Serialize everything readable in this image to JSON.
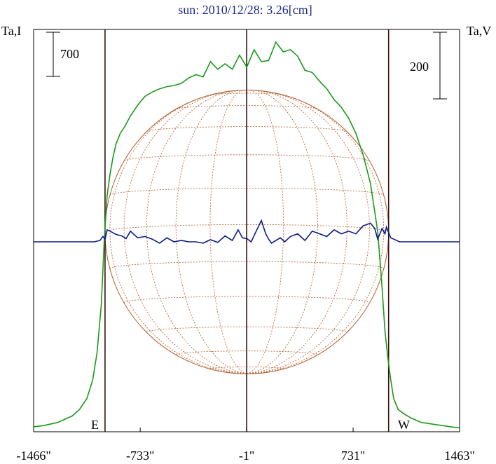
{
  "chart_data": {
    "type": "line",
    "title": "sun: 2010/12/28: 3.26[cm]",
    "left_axis_label": "Ta,I",
    "right_axis_label": "Ta,V",
    "scale_bar_left": "700",
    "scale_bar_right": "200",
    "x_tick_labels": [
      "-1466\"",
      "-733\"",
      "-1\"",
      "731\"",
      "1463\""
    ],
    "x_ticks": [
      -1466,
      -733,
      -1,
      731,
      1463
    ],
    "xlim": [
      -1466,
      1463
    ],
    "limb_east_label": "E",
    "limb_west_label": "W",
    "limb_positions": [
      -975,
      975
    ],
    "center_position": -1,
    "colors": {
      "stokes_I": "#1a9a1a",
      "stokes_V": "#0a1a8a",
      "grid": "#b25a28",
      "frame": "#000000",
      "limb_lines": "#3a1010",
      "title": "#1c2a8a"
    },
    "series": [
      {
        "key": "I",
        "x": [
          -1466,
          -1400,
          -1300,
          -1200,
          -1150,
          -1100,
          -1060,
          -1030,
          -1000,
          -980,
          -960,
          -940,
          -920,
          -900,
          -870,
          -840,
          -800,
          -750,
          -700,
          -650,
          -600,
          -550,
          -500,
          -450,
          -400,
          -350,
          -300,
          -250,
          -200,
          -150,
          -100,
          -50,
          0,
          50,
          100,
          150,
          200,
          250,
          300,
          350,
          400,
          450,
          500,
          550,
          600,
          650,
          700,
          750,
          800,
          850,
          900,
          930,
          950,
          970,
          990,
          1010,
          1040,
          1080,
          1130,
          1200,
          1300,
          1400,
          1463
        ],
        "y": [
          20,
          30,
          60,
          120,
          180,
          280,
          450,
          700,
          1150,
          1750,
          2150,
          2350,
          2500,
          2620,
          2720,
          2780,
          2880,
          2980,
          3060,
          3100,
          3130,
          3150,
          3160,
          3180,
          3230,
          3260,
          3240,
          3380,
          3310,
          3360,
          3310,
          3440,
          3330,
          3490,
          3380,
          3390,
          3560,
          3470,
          3490,
          3430,
          3300,
          3280,
          3200,
          3130,
          3030,
          2960,
          2860,
          2720,
          2520,
          2260,
          1820,
          1300,
          900,
          650,
          450,
          280,
          180,
          140,
          100,
          60,
          40,
          20,
          10
        ]
      },
      {
        "key": "V",
        "x": [
          -1466,
          -1200,
          -1050,
          -1010,
          -990,
          -975,
          -960,
          -940,
          -900,
          -860,
          -830,
          -800,
          -750,
          -700,
          -650,
          -600,
          -550,
          -500,
          -450,
          -400,
          -350,
          -300,
          -250,
          -200,
          -150,
          -100,
          -60,
          -30,
          0,
          30,
          60,
          100,
          130,
          150,
          170,
          200,
          230,
          260,
          300,
          350,
          400,
          450,
          500,
          550,
          600,
          650,
          700,
          750,
          800,
          850,
          880,
          900,
          930,
          950,
          960,
          975,
          990,
          1010,
          1050,
          1200,
          1463
        ],
        "y": [
          0,
          0,
          0,
          5,
          20,
          10,
          45,
          40,
          28,
          22,
          12,
          40,
          15,
          20,
          10,
          -5,
          15,
          0,
          5,
          0,
          0,
          -5,
          8,
          -2,
          22,
          5,
          45,
          15,
          12,
          0,
          35,
          80,
          30,
          10,
          -5,
          5,
          15,
          0,
          20,
          30,
          5,
          40,
          30,
          20,
          45,
          30,
          40,
          30,
          60,
          70,
          50,
          10,
          50,
          30,
          55,
          35,
          15,
          10,
          0,
          0,
          0
        ]
      }
    ],
    "sun_disk": {
      "radius": 975,
      "meridians_deg": [
        -75,
        -60,
        -45,
        -30,
        -15,
        0,
        15,
        30,
        45,
        60,
        75
      ],
      "parallels_deg": [
        -75,
        -60,
        -45,
        -30,
        -15,
        0,
        15,
        30,
        45,
        60,
        75
      ],
      "b0_deg": -3
    },
    "grid": false
  }
}
